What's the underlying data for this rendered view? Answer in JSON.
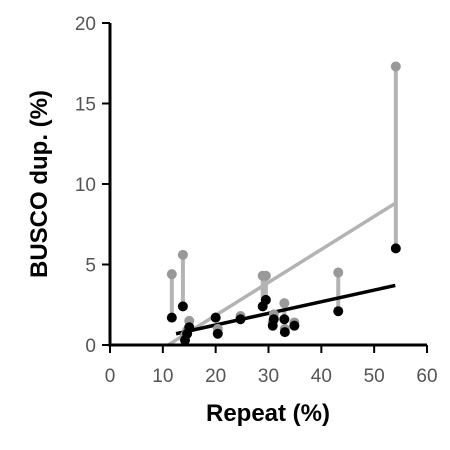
{
  "chart_data": {
    "type": "scatter",
    "xlabel": "Repeat (%)",
    "ylabel": "BUSCO dup. (%)",
    "xlim": [
      0,
      60
    ],
    "ylim": [
      0,
      20
    ],
    "xticks": [
      0,
      10,
      20,
      30,
      40,
      50,
      60
    ],
    "yticks": [
      0,
      5,
      10,
      15,
      20
    ],
    "grid": false,
    "colors": {
      "series_a": "#000000",
      "series_b": "#999999",
      "trend_a": "#000000",
      "trend_b": "#b3b3b3"
    },
    "series": [
      {
        "points": [
          {
            "x": 11.7,
            "y": 1.7
          },
          {
            "x": 13.8,
            "y": 2.4
          },
          {
            "x": 14.2,
            "y": 0.3
          },
          {
            "x": 14.6,
            "y": 0.7
          },
          {
            "x": 15.0,
            "y": 1.1
          },
          {
            "x": 20.0,
            "y": 1.7
          },
          {
            "x": 20.4,
            "y": 0.7
          },
          {
            "x": 24.7,
            "y": 1.6
          },
          {
            "x": 28.9,
            "y": 2.4
          },
          {
            "x": 29.5,
            "y": 2.8
          },
          {
            "x": 30.8,
            "y": 1.2
          },
          {
            "x": 31.0,
            "y": 1.6
          },
          {
            "x": 33.0,
            "y": 1.6
          },
          {
            "x": 33.1,
            "y": 0.8
          },
          {
            "x": 34.9,
            "y": 1.2
          },
          {
            "x": 43.2,
            "y": 2.1
          },
          {
            "x": 54.1,
            "y": 6.0
          }
        ],
        "trend": [
          [
            12.5,
            0.7
          ],
          [
            54.0,
            3.7
          ]
        ]
      },
      {
        "points": [
          {
            "x": 11.7,
            "y": 4.4
          },
          {
            "x": 13.8,
            "y": 5.6
          },
          {
            "x": 14.2,
            "y": 0.6
          },
          {
            "x": 14.6,
            "y": 0.9
          },
          {
            "x": 15.0,
            "y": 1.5
          },
          {
            "x": 20.0,
            "y": 1.7
          },
          {
            "x": 20.4,
            "y": 1.0
          },
          {
            "x": 24.7,
            "y": 1.8
          },
          {
            "x": 28.9,
            "y": 4.3
          },
          {
            "x": 29.5,
            "y": 4.3
          },
          {
            "x": 30.8,
            "y": 1.4
          },
          {
            "x": 31.0,
            "y": 1.9
          },
          {
            "x": 33.0,
            "y": 2.6
          },
          {
            "x": 33.1,
            "y": 1.0
          },
          {
            "x": 34.9,
            "y": 1.4
          },
          {
            "x": 43.2,
            "y": 4.5
          },
          {
            "x": 54.1,
            "y": 17.3
          }
        ],
        "trend": [
          [
            11.0,
            0.0
          ],
          [
            54.0,
            8.8
          ]
        ]
      }
    ]
  }
}
